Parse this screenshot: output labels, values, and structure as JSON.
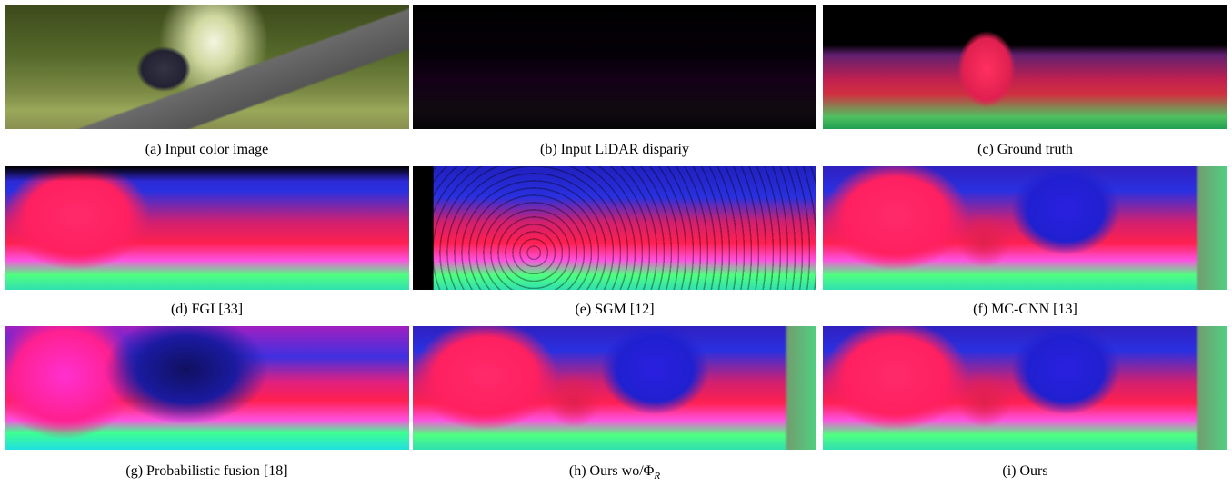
{
  "figure": {
    "panels": [
      {
        "caption": "(a) Input color image"
      },
      {
        "caption": "(b) Input LiDAR dispariy"
      },
      {
        "caption": "(c) Ground truth"
      },
      {
        "caption": "(d) FGI [33]"
      },
      {
        "caption": "(e) SGM [12]"
      },
      {
        "caption": "(f) MC-CNN [13]"
      },
      {
        "caption": "(g) Probabilistic fusion [18]"
      },
      {
        "caption": "(h) Ours wo/Φ",
        "caption_sub": "R"
      },
      {
        "caption": "(i) Ours"
      }
    ]
  }
}
